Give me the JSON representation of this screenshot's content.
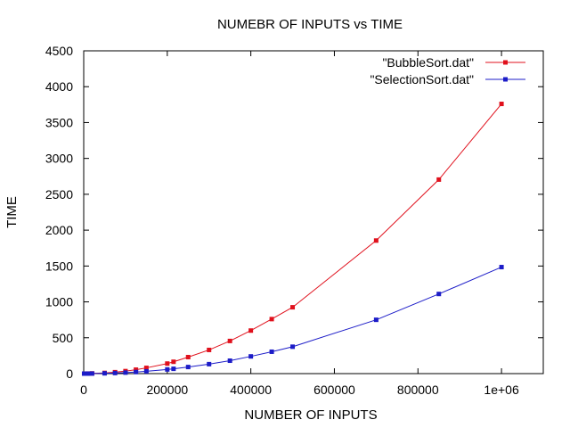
{
  "chart_data": {
    "type": "line",
    "title": "NUMEBR OF INPUTS vs TIME",
    "xlabel": "NUMBER OF INPUTS",
    "ylabel": "TIME",
    "xlim": [
      0,
      1100000
    ],
    "ylim": [
      0,
      4500
    ],
    "x_ticks": [
      0,
      200000,
      400000,
      600000,
      800000,
      1000000
    ],
    "x_tick_labels": [
      "0",
      "200000",
      "400000",
      "600000",
      "800000",
      "1e+06"
    ],
    "y_ticks": [
      0,
      500,
      1000,
      1500,
      2000,
      2500,
      3000,
      3500,
      4000,
      4500
    ],
    "y_tick_labels": [
      "0",
      "500",
      "1000",
      "1500",
      "2000",
      "2500",
      "3000",
      "3500",
      "4000",
      "4500"
    ],
    "grid": false,
    "legend_position": "top-right",
    "series": [
      {
        "name": "\"BubbleSort.dat\"",
        "color": "#e0101c",
        "points": [
          [
            1000,
            0
          ],
          [
            5000,
            0
          ],
          [
            10000,
            1
          ],
          [
            20000,
            3
          ],
          [
            50000,
            10
          ],
          [
            75000,
            20
          ],
          [
            100000,
            35
          ],
          [
            125000,
            55
          ],
          [
            150000,
            80
          ],
          [
            200000,
            140
          ],
          [
            215000,
            165
          ],
          [
            250000,
            230
          ],
          [
            300000,
            330
          ],
          [
            350000,
            455
          ],
          [
            400000,
            600
          ],
          [
            450000,
            760
          ],
          [
            500000,
            925
          ],
          [
            700000,
            1855
          ],
          [
            850000,
            2705
          ],
          [
            1000000,
            3760
          ]
        ]
      },
      {
        "name": "\"SelectionSort.dat\"",
        "color": "#1c1cc8",
        "points": [
          [
            1000,
            0
          ],
          [
            5000,
            0
          ],
          [
            10000,
            0
          ],
          [
            20000,
            1
          ],
          [
            50000,
            4
          ],
          [
            75000,
            8
          ],
          [
            100000,
            14
          ],
          [
            125000,
            22
          ],
          [
            150000,
            32
          ],
          [
            200000,
            58
          ],
          [
            215000,
            67
          ],
          [
            250000,
            92
          ],
          [
            300000,
            132
          ],
          [
            350000,
            180
          ],
          [
            400000,
            240
          ],
          [
            450000,
            305
          ],
          [
            500000,
            375
          ],
          [
            700000,
            750
          ],
          [
            850000,
            1110
          ],
          [
            1000000,
            1485
          ]
        ]
      }
    ]
  }
}
